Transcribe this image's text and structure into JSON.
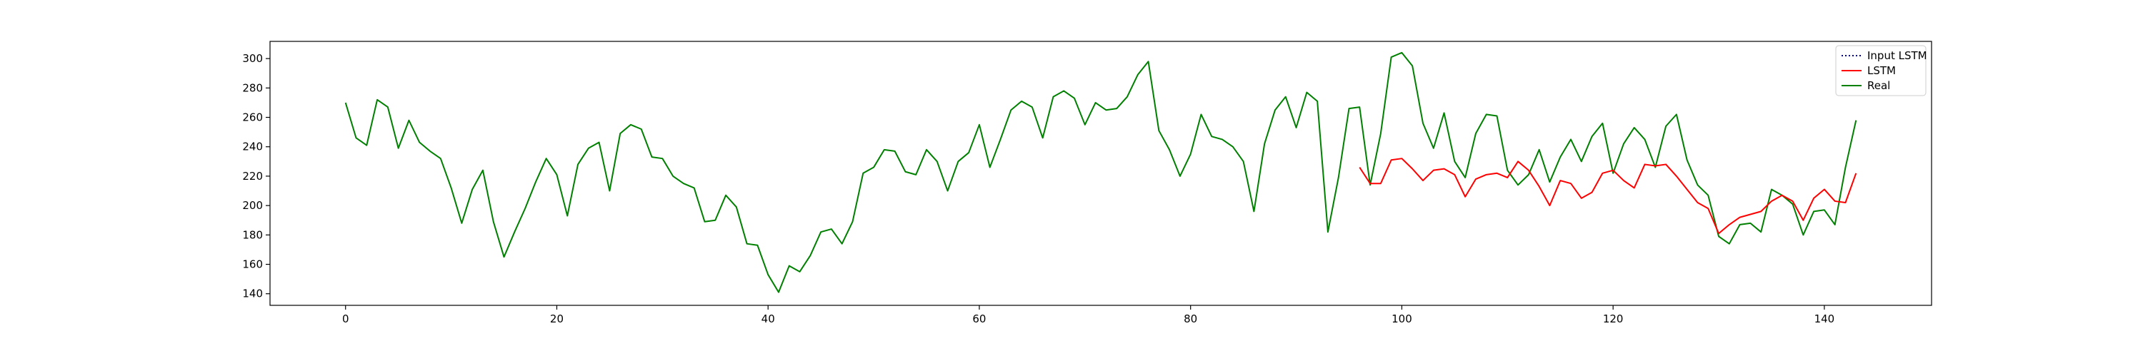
{
  "chart_data": {
    "type": "line",
    "title": "",
    "xlabel": "",
    "ylabel": "",
    "xlim": [
      -7.15,
      150.15
    ],
    "ylim": [
      132.1,
      311.7
    ],
    "xticks": [
      0,
      20,
      40,
      60,
      80,
      100,
      120,
      140
    ],
    "yticks": [
      140,
      160,
      180,
      200,
      220,
      240,
      260,
      280,
      300
    ],
    "grid": false,
    "legend_position": "top-right",
    "series": [
      {
        "name": "Input LSTM",
        "color": "#00008b",
        "style": "dotted",
        "x": [],
        "values": []
      },
      {
        "name": "LSTM",
        "color": "#ff0000",
        "style": "solid",
        "x_start": 96,
        "values": [
          226,
          215,
          215,
          231,
          232,
          225,
          217,
          224,
          225,
          221,
          206,
          218,
          221,
          222,
          219,
          230,
          224,
          213,
          200,
          217,
          215,
          205,
          209,
          222,
          224,
          217,
          212,
          228,
          227,
          228,
          220,
          211,
          202,
          198,
          181,
          187,
          192,
          194,
          196,
          203,
          207,
          203,
          190,
          205,
          211,
          203,
          202,
          222
        ]
      },
      {
        "name": "Real",
        "color": "#008000",
        "style": "solid",
        "x_start": 0,
        "values": [
          270,
          246,
          241,
          272,
          267,
          239,
          258,
          243,
          237,
          232,
          212,
          188,
          211,
          224,
          189,
          165,
          182,
          198,
          216,
          232,
          221,
          193,
          228,
          239,
          243,
          210,
          249,
          255,
          252,
          233,
          232,
          220,
          215,
          212,
          189,
          190,
          207,
          199,
          174,
          173,
          153,
          141,
          159,
          155,
          166,
          182,
          184,
          174,
          189,
          222,
          226,
          238,
          237,
          223,
          221,
          238,
          230,
          210,
          230,
          236,
          255,
          226,
          245,
          265,
          271,
          267,
          246,
          274,
          278,
          273,
          255,
          270,
          265,
          266,
          274,
          289,
          298,
          251,
          238,
          220,
          235,
          262,
          247,
          245,
          240,
          230,
          196,
          242,
          265,
          274,
          253,
          277,
          271,
          182,
          219,
          266,
          267,
          214,
          249,
          301,
          304,
          295,
          256,
          239,
          263,
          230,
          219,
          249,
          262,
          261,
          224,
          214,
          221,
          238,
          216,
          233,
          245,
          230,
          247,
          256,
          222,
          242,
          253,
          245,
          226,
          254,
          262,
          231,
          214,
          207,
          179,
          174,
          187,
          188,
          182,
          211,
          207,
          201,
          180,
          196,
          197,
          187,
          226,
          258
        ]
      }
    ]
  }
}
